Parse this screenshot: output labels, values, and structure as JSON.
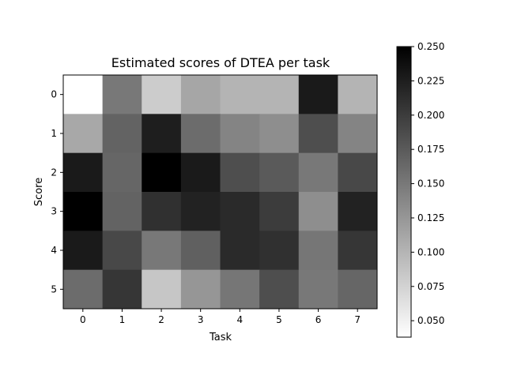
{
  "chart_data": {
    "type": "heatmap",
    "title": "Estimated scores of DTEA per task",
    "xlabel": "Task",
    "ylabel": "Score",
    "x_categories": [
      "0",
      "1",
      "2",
      "3",
      "4",
      "5",
      "6",
      "7"
    ],
    "y_categories": [
      "0",
      "1",
      "2",
      "3",
      "4",
      "5"
    ],
    "values": [
      [
        0.038,
        0.15,
        0.08,
        0.112,
        0.1,
        0.1,
        0.228,
        0.1
      ],
      [
        0.11,
        0.168,
        0.225,
        0.16,
        0.14,
        0.132,
        0.185,
        0.14
      ],
      [
        0.228,
        0.165,
        0.25,
        0.228,
        0.185,
        0.175,
        0.15,
        0.19
      ],
      [
        0.25,
        0.168,
        0.21,
        0.222,
        0.215,
        0.2,
        0.132,
        0.222
      ],
      [
        0.228,
        0.19,
        0.15,
        0.17,
        0.215,
        0.21,
        0.152,
        0.205
      ],
      [
        0.16,
        0.205,
        0.085,
        0.125,
        0.152,
        0.185,
        0.15,
        0.165
      ]
    ],
    "colorbar": {
      "vmin": 0.038,
      "vmax": 0.25,
      "ticks": [
        "0.050",
        "0.075",
        "0.100",
        "0.125",
        "0.150",
        "0.175",
        "0.200",
        "0.225",
        "0.250"
      ],
      "colormap_low": "#ffffff",
      "colormap_high": "#000000"
    },
    "grid": false,
    "legend": "colorbar-right"
  }
}
